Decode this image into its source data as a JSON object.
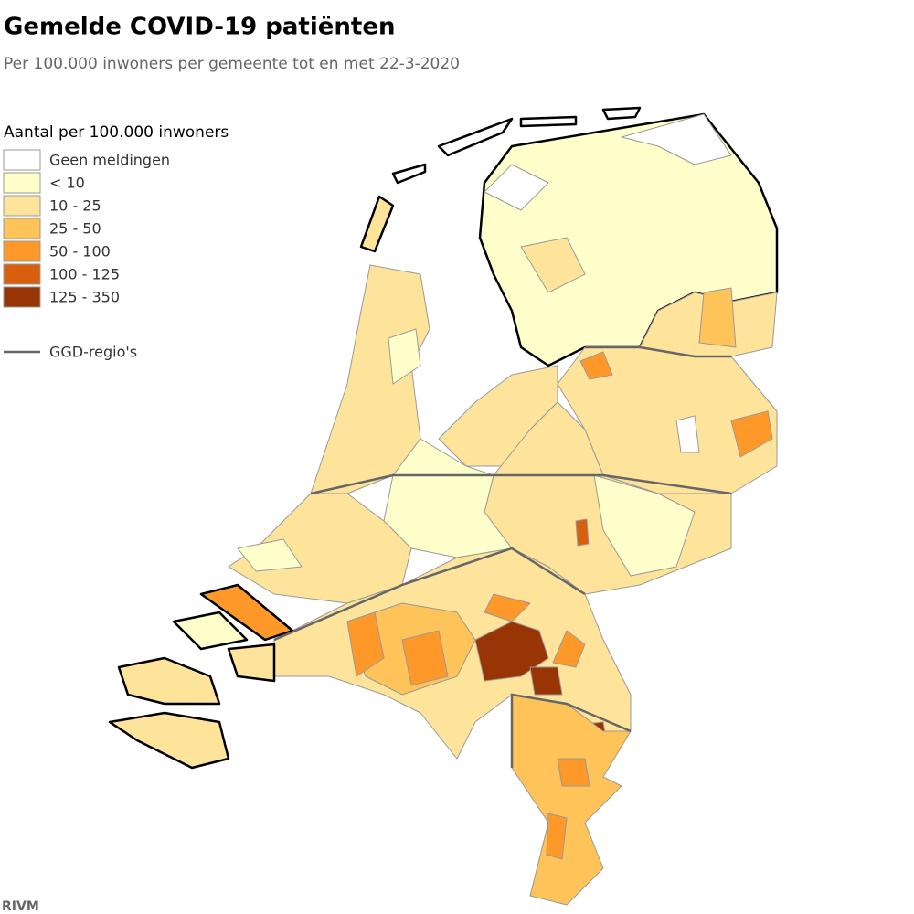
{
  "header": {
    "title": "Gemelde COVID-19 patiënten",
    "subtitle": "Per 100.000 inwoners per gemeente tot en met 22-3-2020"
  },
  "legend": {
    "title": "Aantal per 100.000 inwoners",
    "classes": [
      {
        "label": "Geen meldingen",
        "color": "#ffffff"
      },
      {
        "label": "< 10",
        "color": "#ffffcc"
      },
      {
        "label": "10 - 25",
        "color": "#fee49b"
      },
      {
        "label": "25 - 50",
        "color": "#fec45a"
      },
      {
        "label": "50 - 100",
        "color": "#fe9929"
      },
      {
        "label": "100 - 125",
        "color": "#d95f0e"
      },
      {
        "label": "125 - 350",
        "color": "#993404"
      }
    ],
    "boundary_label": "GGD-regio's"
  },
  "source": "RIVM"
}
